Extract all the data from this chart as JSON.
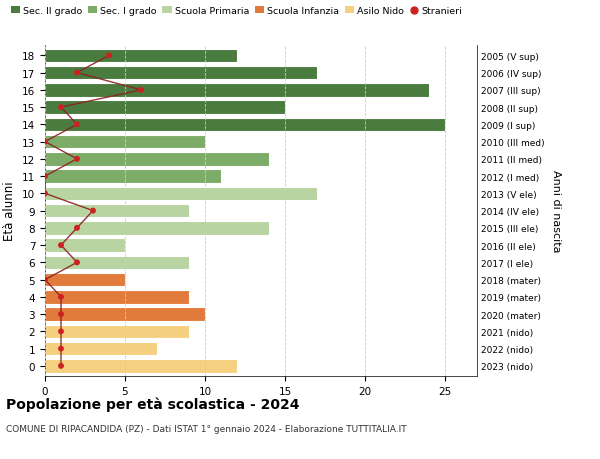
{
  "ages": [
    18,
    17,
    16,
    15,
    14,
    13,
    12,
    11,
    10,
    9,
    8,
    7,
    6,
    5,
    4,
    3,
    2,
    1,
    0
  ],
  "right_labels": [
    "2005 (V sup)",
    "2006 (IV sup)",
    "2007 (III sup)",
    "2008 (II sup)",
    "2009 (I sup)",
    "2010 (III med)",
    "2011 (II med)",
    "2012 (I med)",
    "2013 (V ele)",
    "2014 (IV ele)",
    "2015 (III ele)",
    "2016 (II ele)",
    "2017 (I ele)",
    "2018 (mater)",
    "2019 (mater)",
    "2020 (mater)",
    "2021 (nido)",
    "2022 (nido)",
    "2023 (nido)"
  ],
  "bar_values": [
    12,
    17,
    24,
    15,
    25,
    10,
    14,
    11,
    17,
    9,
    14,
    5,
    9,
    5,
    9,
    10,
    9,
    7,
    12
  ],
  "bar_colors": [
    "#4a7c3f",
    "#4a7c3f",
    "#4a7c3f",
    "#4a7c3f",
    "#4a7c3f",
    "#7dab68",
    "#7dab68",
    "#7dab68",
    "#b8d4a0",
    "#b8d4a0",
    "#b8d4a0",
    "#b8d4a0",
    "#b8d4a0",
    "#e07b3c",
    "#e07b3c",
    "#e07b3c",
    "#f5d080",
    "#f5d080",
    "#f5d080"
  ],
  "stranieri_values": [
    4,
    2,
    6,
    1,
    2,
    0,
    2,
    0,
    0,
    3,
    2,
    1,
    2,
    0,
    1,
    1,
    1,
    1,
    1
  ],
  "title": "Popolazione per età scolastica - 2024",
  "subtitle": "COMUNE DI RIPACANDIDA (PZ) - Dati ISTAT 1° gennaio 2024 - Elaborazione TUTTITALIA.IT",
  "ylabel": "Età alunni",
  "right_ylabel": "Anni di nascita",
  "xlim": [
    0,
    27
  ],
  "xticks": [
    0,
    5,
    10,
    15,
    20,
    25
  ],
  "legend_labels": [
    "Sec. II grado",
    "Sec. I grado",
    "Scuola Primaria",
    "Scuola Infanzia",
    "Asilo Nido",
    "Stranieri"
  ],
  "legend_colors": [
    "#4a7c3f",
    "#7dab68",
    "#b8d4a0",
    "#e07b3c",
    "#f5d080",
    "#cc2222"
  ],
  "background_color": "#ffffff",
  "bar_height": 0.78
}
